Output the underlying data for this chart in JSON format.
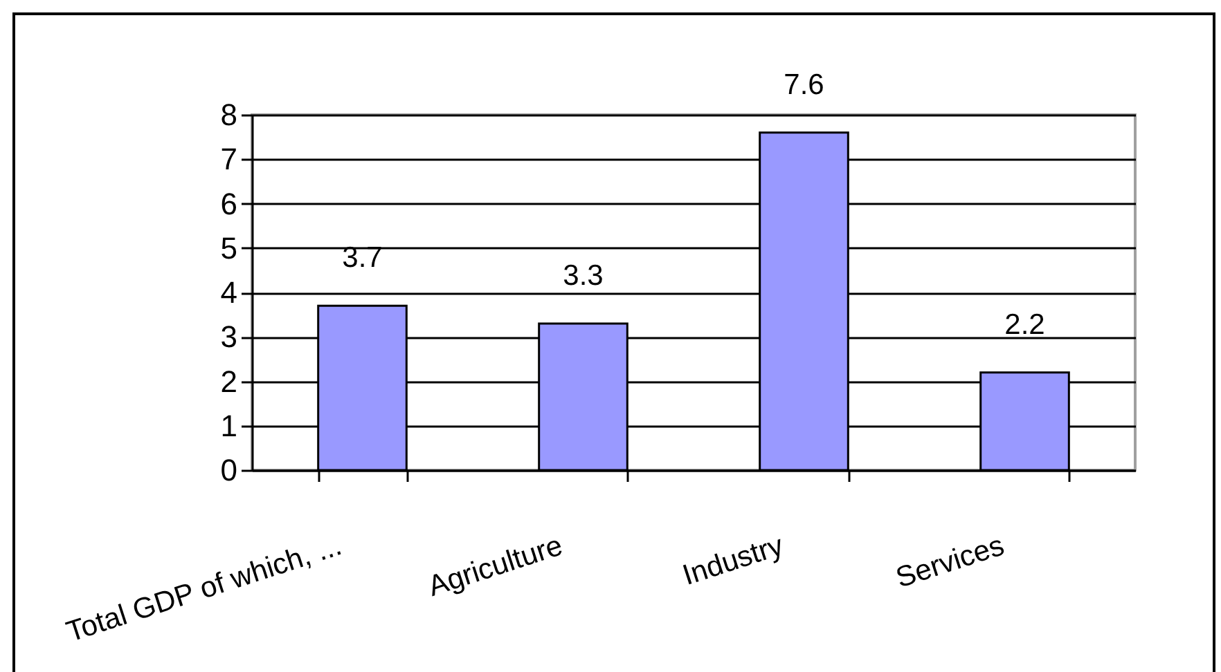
{
  "chart_data": {
    "type": "bar",
    "categories": [
      "Total GDP of which, ...",
      "Agriculture",
      "Industry",
      "Services"
    ],
    "values": [
      3.7,
      3.3,
      7.6,
      2.2
    ],
    "color": "#9999ff",
    "ylim": [
      0,
      8
    ],
    "yticks": [
      0,
      1,
      2,
      3,
      4,
      5,
      6,
      7,
      8
    ],
    "grid": "y",
    "data_labels": true
  }
}
